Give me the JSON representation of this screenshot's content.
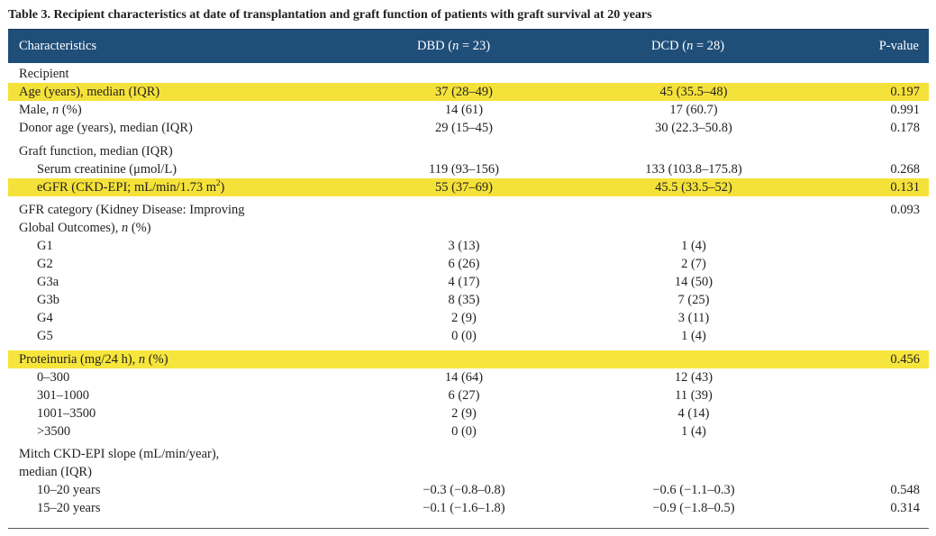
{
  "caption": "Table 3. Recipient characteristics at date of transplantation and graft function of patients with graft survival at 20 years",
  "header": {
    "characteristics": "Characteristics",
    "dbd": "DBD (n = 23)",
    "dcd": "DCD (n = 28)",
    "pvalue": "P-value"
  },
  "rows": [
    {
      "label": "Recipient",
      "dbd": "",
      "dcd": "",
      "p": ""
    },
    {
      "label": "Age (years), median (IQR)",
      "dbd": "37 (28–49)",
      "dcd": "45 (35.5–48)",
      "p": "0.197",
      "highlight": true
    },
    {
      "label": "Male, n (%)",
      "dbd": "14 (61)",
      "dcd": "17 (60.7)",
      "p": "0.991"
    },
    {
      "label": "Donor age (years), median (IQR)",
      "dbd": "29 (15–45)",
      "dcd": "30 (22.3–50.8)",
      "p": "0.178"
    },
    {
      "label": "Graft function, median (IQR)",
      "dbd": "",
      "dcd": "",
      "p": ""
    },
    {
      "label": "Serum creatinine (μmol/L)",
      "dbd": "119 (93–156)",
      "dcd": "133 (103.8–175.8)",
      "p": "0.268"
    },
    {
      "label": "eGFR (CKD-EPI; mL/min/1.73 m²)",
      "dbd": "55 (37–69)",
      "dcd": "45.5 (33.5–52)",
      "p": "0.131",
      "highlight": true
    },
    {
      "label": "GFR category (Kidney Disease: Improving",
      "dbd": "",
      "dcd": "",
      "p": "0.093"
    },
    {
      "label": "Global Outcomes), n (%)",
      "dbd": "",
      "dcd": "",
      "p": ""
    },
    {
      "label": "G1",
      "dbd": "3 (13)",
      "dcd": "1 (4)",
      "p": ""
    },
    {
      "label": "G2",
      "dbd": "6 (26)",
      "dcd": "2 (7)",
      "p": ""
    },
    {
      "label": "G3a",
      "dbd": "4 (17)",
      "dcd": "14 (50)",
      "p": ""
    },
    {
      "label": "G3b",
      "dbd": "8 (35)",
      "dcd": "7 (25)",
      "p": ""
    },
    {
      "label": "G4",
      "dbd": "2 (9)",
      "dcd": "3 (11)",
      "p": ""
    },
    {
      "label": "G5",
      "dbd": "0 (0)",
      "dcd": "1 (4)",
      "p": ""
    },
    {
      "label": "Proteinuria (mg/24 h), n (%)",
      "dbd": "",
      "dcd": "",
      "p": "0.456",
      "highlight": true
    },
    {
      "label": "0–300",
      "dbd": "14 (64)",
      "dcd": "12 (43)",
      "p": ""
    },
    {
      "label": "301–1000",
      "dbd": "6 (27)",
      "dcd": "11 (39)",
      "p": ""
    },
    {
      "label": "1001–3500",
      "dbd": "2 (9)",
      "dcd": "4 (14)",
      "p": ""
    },
    {
      "label": ">3500",
      "dbd": "0 (0)",
      "dcd": "1 (4)",
      "p": ""
    },
    {
      "label": "Mitch CKD-EPI slope (mL/min/year),",
      "dbd": "",
      "dcd": "",
      "p": ""
    },
    {
      "label": "median (IQR)",
      "dbd": "",
      "dcd": "",
      "p": ""
    },
    {
      "label": "10–20 years",
      "dbd": "−0.3 (−0.8–0.8)",
      "dcd": "−0.6 (−1.1–0.3)",
      "p": "0.548"
    },
    {
      "label": "15–20 years",
      "dbd": "−0.1 (−1.6–1.8)",
      "dcd": "−0.9 (−1.8–0.5)",
      "p": "0.314"
    }
  ]
}
